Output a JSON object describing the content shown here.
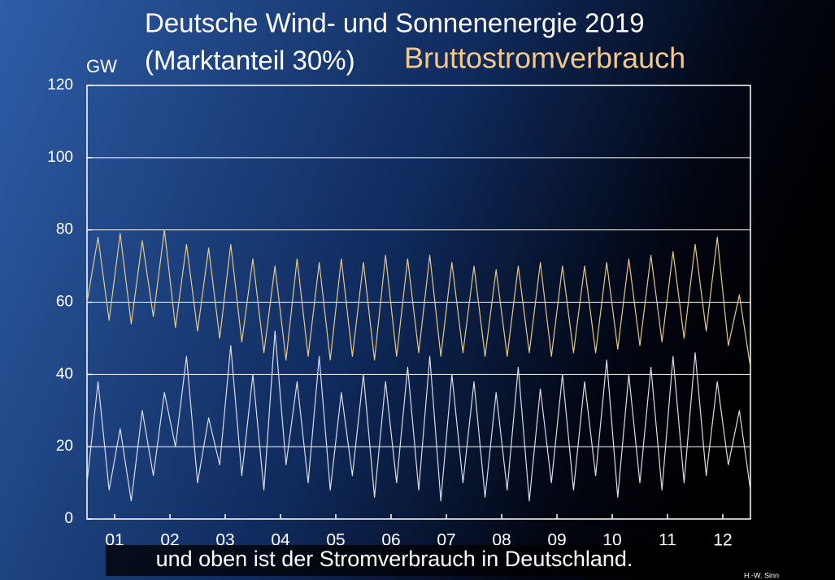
{
  "chart_data": {
    "type": "line",
    "title": "Deutsche Wind- und Sonnenenergie 2019",
    "subtitle": "(Marktanteil 30%)",
    "y_label": "GW",
    "caption": "und oben ist der Stromverbrauch in Deutschland.",
    "credit": "H.-W. Sinn",
    "x": [
      0,
      0.2,
      0.4,
      0.6,
      0.8,
      1,
      1.2,
      1.4,
      1.6,
      1.8,
      2,
      2.2,
      2.4,
      2.6,
      2.8,
      3,
      3.2,
      3.4,
      3.6,
      3.8,
      4,
      4.2,
      4.4,
      4.6,
      4.8,
      5,
      5.2,
      5.4,
      5.6,
      5.8,
      6,
      6.2,
      6.4,
      6.6,
      6.8,
      7,
      7.2,
      7.4,
      7.6,
      7.8,
      8,
      8.2,
      8.4,
      8.6,
      8.8,
      9,
      9.2,
      9.4,
      9.6,
      9.8,
      10,
      10.2,
      10.4,
      10.6,
      10.8,
      11,
      11.2,
      11.4,
      11.6,
      11.8,
      12
    ],
    "series": [
      {
        "name": "Bruttostromverbrauch",
        "color": "#e8c88a",
        "values": [
          60,
          78,
          55,
          79,
          54,
          77,
          56,
          80,
          53,
          76,
          52,
          75,
          50,
          76,
          49,
          72,
          46,
          70,
          44,
          72,
          45,
          71,
          44,
          72,
          45,
          71,
          44,
          73,
          45,
          72,
          46,
          73,
          45,
          71,
          46,
          70,
          45,
          69,
          45,
          70,
          46,
          71,
          45,
          70,
          46,
          70,
          46,
          71,
          47,
          72,
          48,
          73,
          49,
          74,
          50,
          76,
          52,
          78,
          48,
          62,
          42
        ]
      },
      {
        "color": "#dcdce6",
        "values": [
          10,
          38,
          8,
          25,
          5,
          30,
          12,
          35,
          20,
          45,
          10,
          28,
          15,
          48,
          12,
          40,
          8,
          52,
          15,
          38,
          10,
          45,
          8,
          35,
          12,
          40,
          6,
          38,
          10,
          42,
          8,
          45,
          5,
          40,
          10,
          38,
          6,
          35,
          8,
          42,
          5,
          36,
          10,
          40,
          8,
          38,
          12,
          44,
          6,
          40,
          10,
          42,
          8,
          45,
          10,
          46,
          12,
          38,
          15,
          30,
          8
        ]
      }
    ],
    "xlim": [
      0,
      12
    ],
    "xticks": [
      {
        "value": 0.5,
        "label": "01"
      },
      {
        "value": 1.5,
        "label": "02"
      },
      {
        "value": 2.5,
        "label": "03"
      },
      {
        "value": 3.5,
        "label": "04"
      },
      {
        "value": 4.5,
        "label": "05"
      },
      {
        "value": 5.5,
        "label": "06"
      },
      {
        "value": 6.5,
        "label": "07"
      },
      {
        "value": 7.5,
        "label": "08"
      },
      {
        "value": 8.5,
        "label": "09"
      },
      {
        "value": 9.5,
        "label": "10"
      },
      {
        "value": 10.5,
        "label": "11"
      },
      {
        "value": 11.5,
        "label": "12"
      }
    ],
    "ylim": [
      0,
      120
    ],
    "yticks": [
      0,
      20,
      40,
      60,
      80,
      100,
      120
    ],
    "grid": true
  }
}
